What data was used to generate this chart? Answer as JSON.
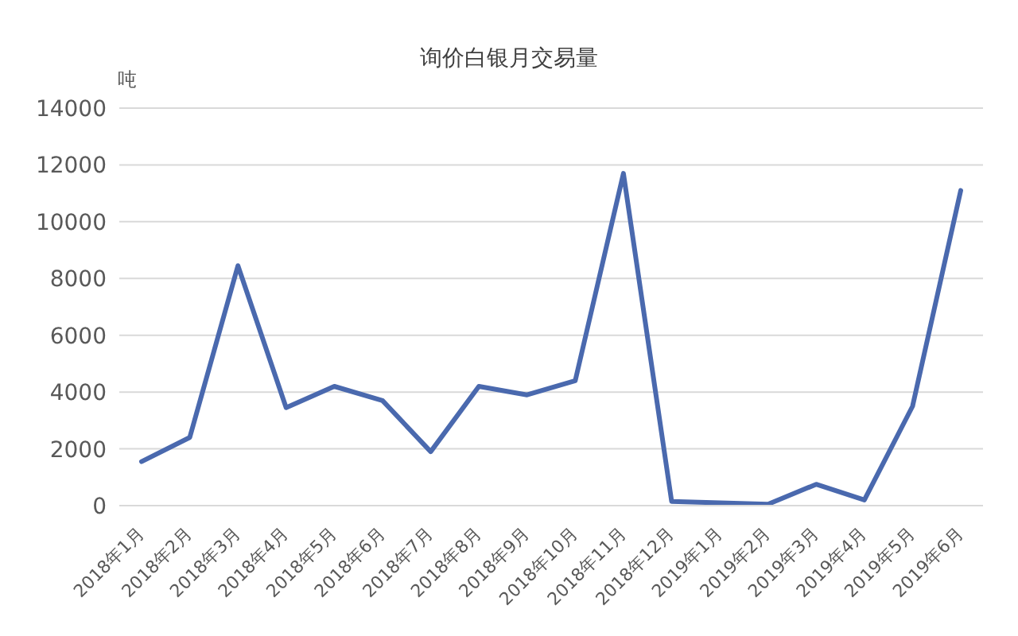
{
  "chart_data": {
    "type": "line",
    "title": "询价白银月交易量",
    "ylabel": "吨",
    "categories": [
      "2018年1月",
      "2018年2月",
      "2018年3月",
      "2018年4月",
      "2018年5月",
      "2018年6月",
      "2018年7月",
      "2018年8月",
      "2018年9月",
      "2018年10月",
      "2018年11月",
      "2018年12月",
      "2019年1月",
      "2019年2月",
      "2019年3月",
      "2019年4月",
      "2019年5月",
      "2019年6月"
    ],
    "series": [
      {
        "color": "#4a69ae",
        "values": [
          1550,
          2400,
          8450,
          3450,
          4200,
          3700,
          1900,
          4200,
          3900,
          4400,
          11700,
          150,
          100,
          50,
          750,
          200,
          3500,
          11100
        ]
      }
    ],
    "ylim": [
      0,
      14000
    ],
    "yticks": [
      0,
      2000,
      4000,
      6000,
      8000,
      10000,
      12000,
      14000
    ],
    "grid": "y",
    "legend": false,
    "marker": "none",
    "line_style": "solid"
  }
}
